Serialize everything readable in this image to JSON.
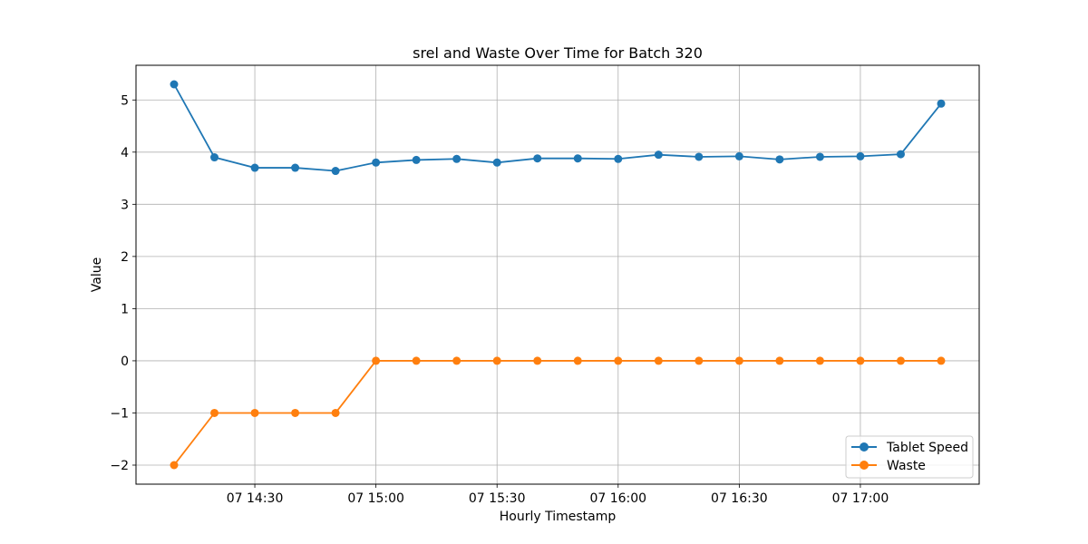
{
  "chart_data": {
    "type": "line",
    "title": "srel and Waste Over Time for Batch 320",
    "xlabel": "Hourly Timestamp",
    "ylabel": "Value",
    "x": [
      "07 14:10",
      "07 14:20",
      "07 14:30",
      "07 14:40",
      "07 14:50",
      "07 15:00",
      "07 15:10",
      "07 15:20",
      "07 15:30",
      "07 15:40",
      "07 15:50",
      "07 16:00",
      "07 16:10",
      "07 16:20",
      "07 16:30",
      "07 16:40",
      "07 16:50",
      "07 17:00",
      "07 17:10",
      "07 17:20"
    ],
    "x_tick_labels": [
      "07 14:30",
      "07 15:00",
      "07 15:30",
      "07 16:00",
      "07 16:30",
      "07 17:00"
    ],
    "y_ticks": [
      -2,
      -1,
      0,
      1,
      2,
      3,
      4,
      5
    ],
    "y_tick_labels": [
      "−2",
      "−1",
      "0",
      "1",
      "2",
      "3",
      "4",
      "5"
    ],
    "ylim": [
      -2.365,
      5.665
    ],
    "grid": true,
    "legend_position": "bottom-right",
    "series": [
      {
        "name": "Tablet Speed",
        "color": "#1f77b4",
        "marker": "circle",
        "values": [
          5.3,
          3.9,
          3.7,
          3.7,
          3.64,
          3.8,
          3.85,
          3.87,
          3.8,
          3.88,
          3.88,
          3.87,
          3.95,
          3.91,
          3.92,
          3.86,
          3.91,
          3.92,
          3.96,
          4.93
        ]
      },
      {
        "name": "Waste",
        "color": "#ff7f0e",
        "marker": "circle",
        "values": [
          -2,
          -1,
          -1,
          -1,
          -1,
          0,
          0,
          0,
          0,
          0,
          0,
          0,
          0,
          0,
          0,
          0,
          0,
          0,
          0,
          0
        ]
      }
    ]
  }
}
